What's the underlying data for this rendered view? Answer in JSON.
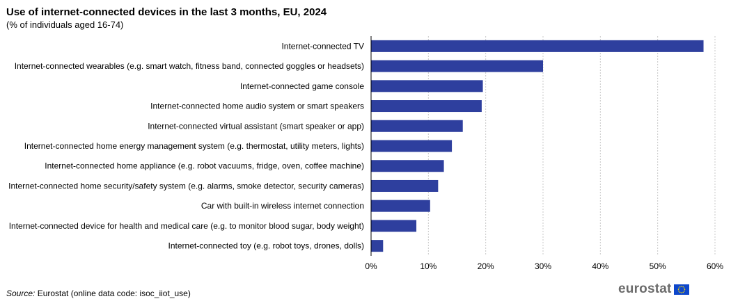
{
  "title": "Use of internet-connected devices in the last 3 months, EU, 2024",
  "subtitle": "(% of individuals aged 16-74)",
  "source": {
    "label": "Source:",
    "text": "Eurostat (online data code: isoc_iiot_use)"
  },
  "logo": {
    "text": "eurostat",
    "flag_color": "#0e47cb"
  },
  "chart_data": {
    "type": "bar",
    "orientation": "horizontal",
    "categories": [
      "Internet-connected TV",
      "Internet-connected wearables (e.g. smart watch, fitness band, connected goggles or headsets)",
      "Internet-connected game console",
      "Internet-connected home audio system or smart speakers",
      "Internet-connected virtual assistant (smart speaker or app)",
      "Internet-connected home energy management system (e.g. thermostat, utility meters, lights)",
      "Internet-connected home appliance (e.g. robot vacuums, fridge, oven, coffee machine)",
      "Internet-connected home security/safety system (e.g. alarms, smoke detector, security cameras)",
      "Car with built-in wireless internet connection",
      "Internet-connected device for health and medical care (e.g. to monitor blood sugar, body weight)",
      "Internet-connected toy (e.g. robot toys, drones, dolls)"
    ],
    "values": [
      58.0,
      30.0,
      19.5,
      19.3,
      16.0,
      14.1,
      12.7,
      11.7,
      10.3,
      7.9,
      2.1
    ],
    "xlim": [
      0,
      60
    ],
    "xticks": [
      0,
      10,
      20,
      30,
      40,
      50,
      60
    ],
    "tick_suffix": "%",
    "grid": true,
    "bar_color": "#2e3f9e",
    "grid_color": "#c8c8c8"
  }
}
